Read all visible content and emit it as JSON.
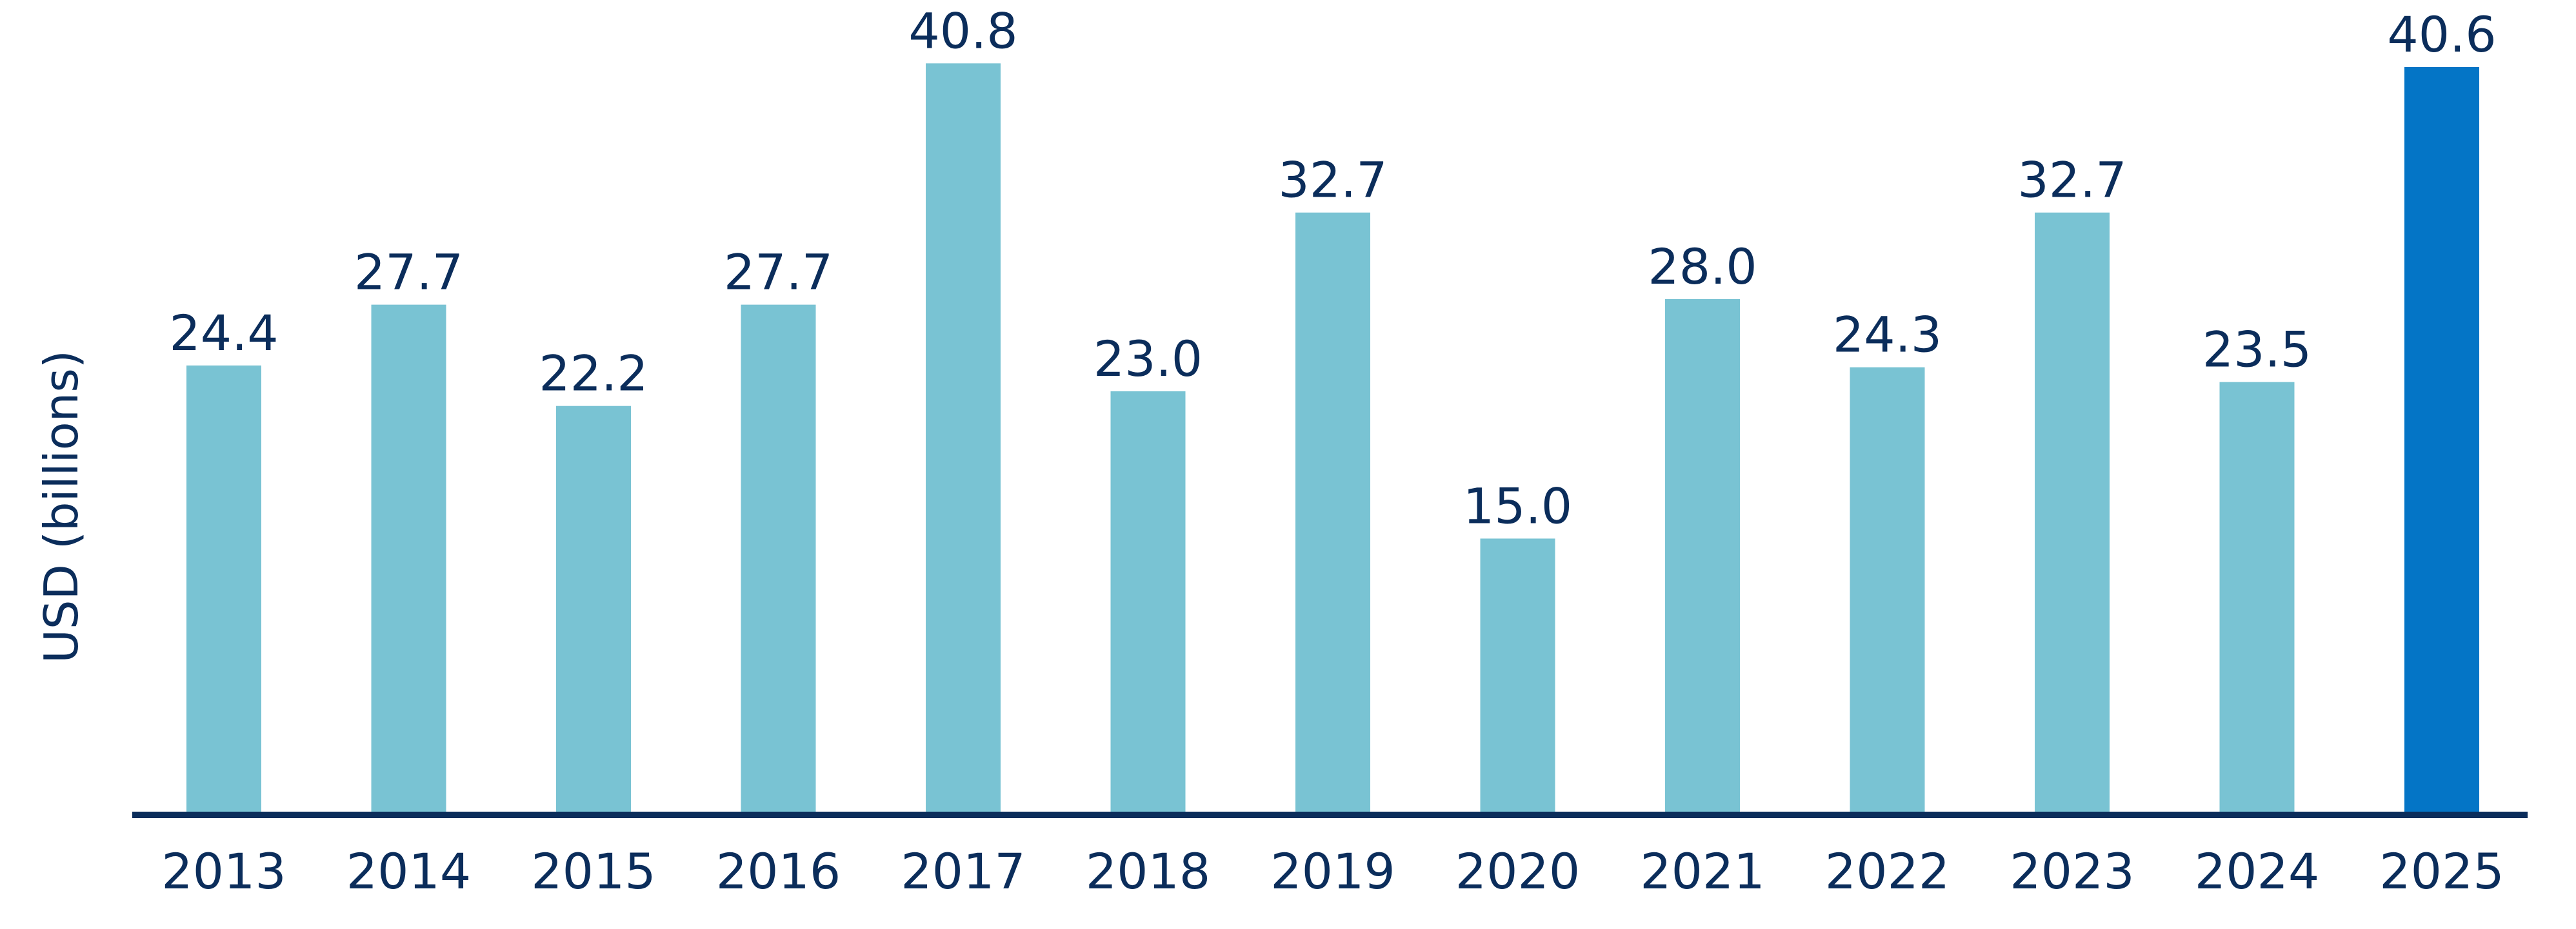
{
  "chart_data": {
    "type": "bar",
    "title": "",
    "xlabel": "",
    "ylabel": "USD (billions)",
    "categories": [
      "2013",
      "2014",
      "2015",
      "2016",
      "2017",
      "2018",
      "2019",
      "2020",
      "2021",
      "2022",
      "2023",
      "2024",
      "2025"
    ],
    "values": [
      24.4,
      27.7,
      22.2,
      27.7,
      40.8,
      23.0,
      32.7,
      15.0,
      28.0,
      24.3,
      32.7,
      23.5,
      40.6
    ],
    "value_labels": [
      "24.4",
      "27.7",
      "22.2",
      "27.7",
      "40.8",
      "23.0",
      "32.7",
      "15.0",
      "28.0",
      "24.3",
      "32.7",
      "23.5",
      "40.6"
    ],
    "ylim": [
      0,
      42
    ],
    "grid": false,
    "legend": "none",
    "highlight_category": "2025",
    "colors": {
      "bar": "#79c3d3",
      "highlight": "#0475c6",
      "axis": "#0b2d5b",
      "text": "#0b2d5b"
    }
  }
}
